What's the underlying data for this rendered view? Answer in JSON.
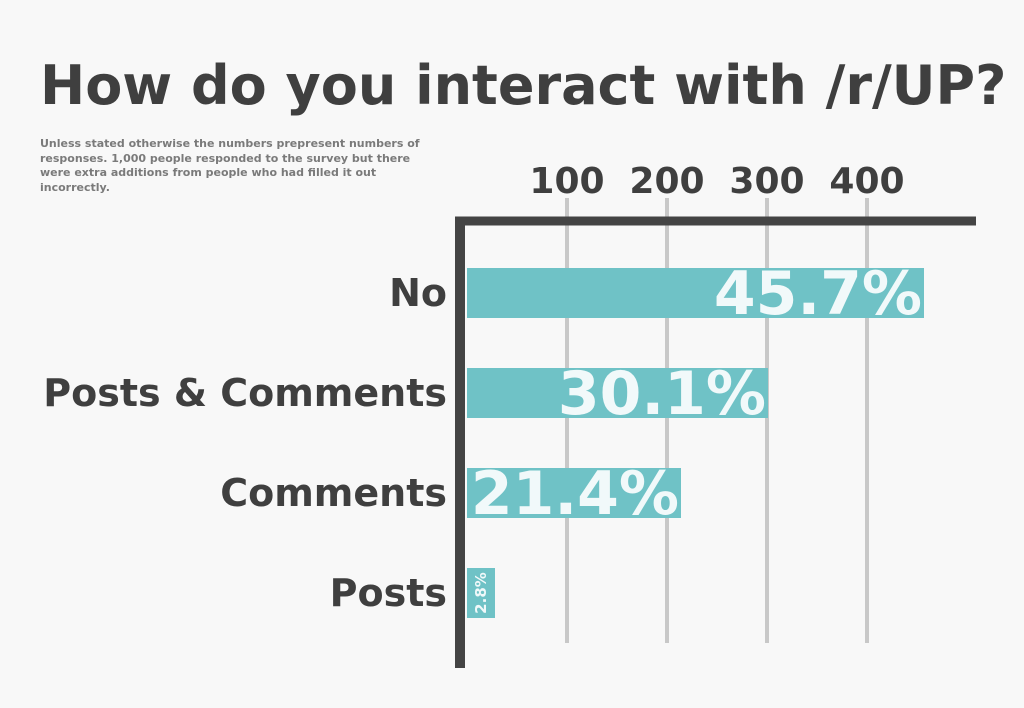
{
  "chart_data": {
    "type": "bar",
    "orientation": "horizontal",
    "title": "How do you interact with /r/UP?",
    "subtitle": "Unless stated otherwise the numbers prepresent numbers of responses. 1,000 people responded to the survey but there were extra additions from people who had filled it out incorrectly.",
    "categories": [
      "No",
      "Posts & Comments",
      "Comments",
      "Posts"
    ],
    "values": [
      457,
      301,
      214,
      28
    ],
    "labels": [
      "45.7%",
      "30.1%",
      "21.4%",
      "2.8%"
    ],
    "xticks": [
      100,
      200,
      300,
      400
    ],
    "xlim": [
      0,
      515
    ],
    "grid": true,
    "xaxis_position": "top",
    "bar_color": "#6fc2c6"
  }
}
